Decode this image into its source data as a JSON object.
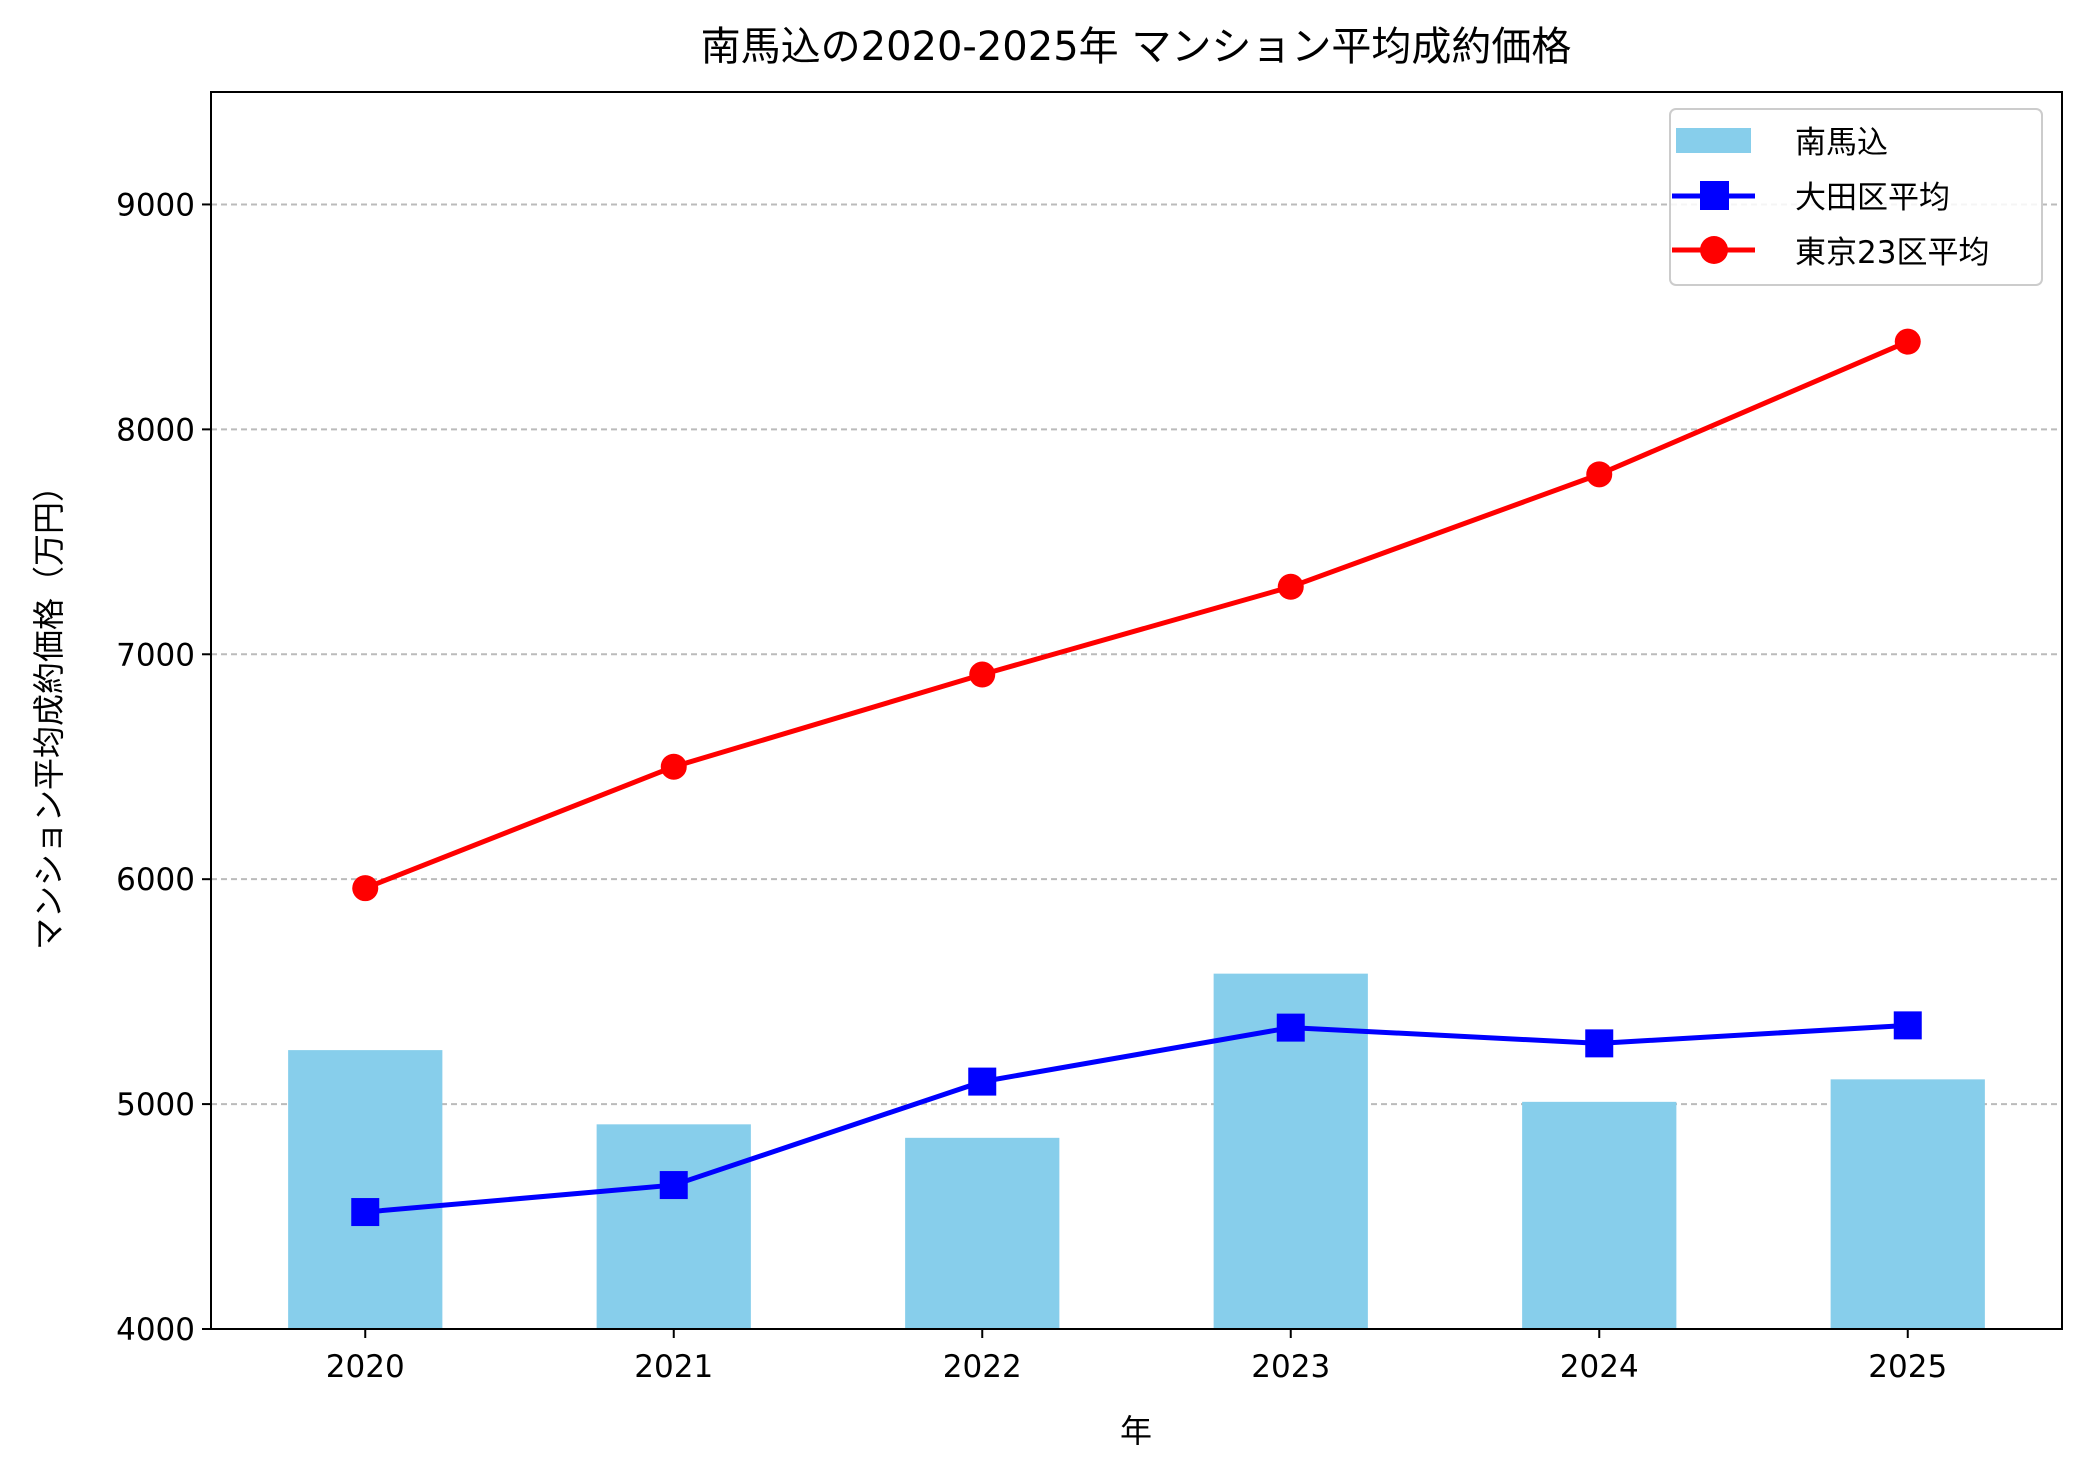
{
  "chart_data": {
    "type": "bar+line",
    "title": "南馬込の2020-2025年 マンション平均成約価格",
    "xlabel": "年",
    "ylabel": "マンション平均成約価格（万円）",
    "categories": [
      "2020",
      "2021",
      "2022",
      "2023",
      "2024",
      "2025"
    ],
    "ylim": [
      4000,
      9500
    ],
    "yticks": [
      4000,
      5000,
      6000,
      7000,
      8000,
      9000
    ],
    "grid": "y, dashed",
    "legend_position": "top-right",
    "series": [
      {
        "name": "南馬込",
        "type": "bar",
        "color": "#87ceeb",
        "values": [
          5240,
          4910,
          4850,
          5580,
          5010,
          5110
        ]
      },
      {
        "name": "大田区平均",
        "type": "line",
        "marker": "square",
        "color": "#0000ff",
        "values": [
          4520,
          4640,
          5100,
          5340,
          5270,
          5350
        ]
      },
      {
        "name": "東京23区平均",
        "type": "line",
        "marker": "circle",
        "color": "#ff0000",
        "values": [
          5960,
          6500,
          6910,
          7300,
          7800,
          8390
        ]
      }
    ]
  }
}
